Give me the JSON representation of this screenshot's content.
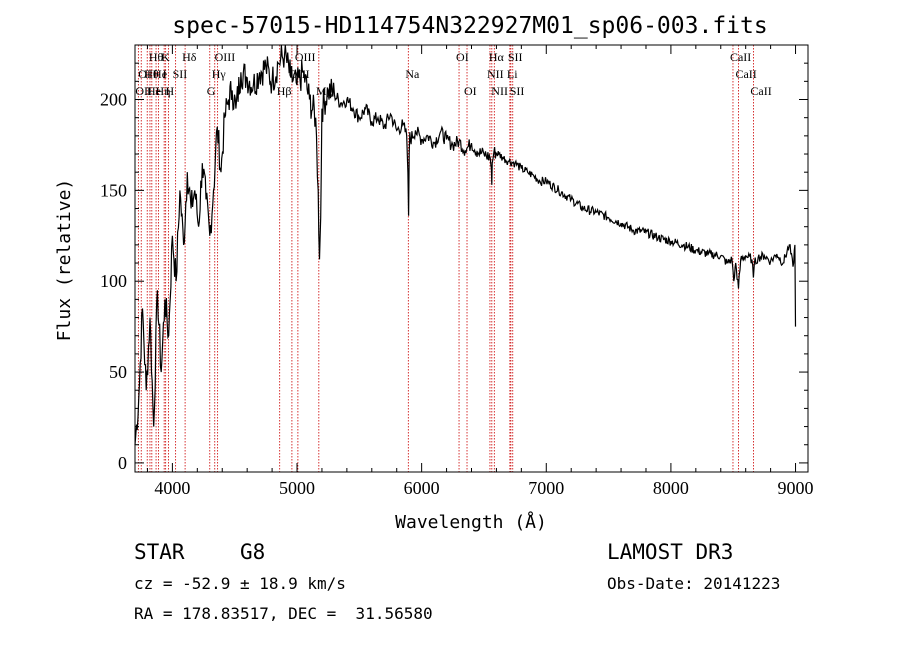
{
  "chart_data": {
    "type": "line",
    "title": "spec-57015-HD114754N322927M01_sp06-003.fits",
    "xlabel": "Wavelength (Å)",
    "ylabel": "Flux (relative)",
    "xlim": [
      3700,
      9100
    ],
    "ylim": [
      -5,
      230
    ],
    "xticks": [
      4000,
      5000,
      6000,
      7000,
      8000,
      9000
    ],
    "yticks": [
      0,
      50,
      100,
      150,
      200
    ],
    "x_tick_labels": [
      "4000",
      "5000",
      "6000",
      "7000",
      "8000",
      "9000"
    ],
    "y_tick_labels": [
      "0",
      "50",
      "100",
      "150",
      "200"
    ],
    "series": [
      {
        "name": "spectrum",
        "color": "#000000",
        "x": [
          3700,
          3730,
          3760,
          3790,
          3820,
          3850,
          3880,
          3910,
          3940,
          3970,
          4000,
          4030,
          4060,
          4090,
          4120,
          4150,
          4180,
          4210,
          4240,
          4270,
          4300,
          4330,
          4360,
          4390,
          4420,
          4450,
          4480,
          4510,
          4550,
          4600,
          4650,
          4700,
          4750,
          4800,
          4850,
          4900,
          4950,
          5000,
          5050,
          5100,
          5150,
          5170,
          5180,
          5190,
          5200,
          5250,
          5300,
          5350,
          5400,
          5450,
          5500,
          5550,
          5600,
          5650,
          5700,
          5750,
          5800,
          5850,
          5880,
          5890,
          5895,
          5900,
          5905,
          5910,
          5950,
          6000,
          6050,
          6100,
          6150,
          6200,
          6250,
          6300,
          6350,
          6400,
          6450,
          6500,
          6550,
          6560,
          6563,
          6566,
          6580,
          6620,
          6650,
          6700,
          6750,
          6800,
          6850,
          6900,
          6950,
          7000,
          7100,
          7200,
          7300,
          7400,
          7500,
          7600,
          7700,
          7800,
          7900,
          8000,
          8100,
          8200,
          8300,
          8400,
          8450,
          8490,
          8498,
          8505,
          8520,
          8542,
          8560,
          8600,
          8650,
          8662,
          8670,
          8700,
          8750,
          8800,
          8850,
          8900,
          8950,
          8980,
          8995,
          9000
        ],
        "values": [
          10,
          35,
          85,
          40,
          80,
          20,
          95,
          50,
          90,
          70,
          125,
          100,
          150,
          120,
          160,
          140,
          150,
          130,
          165,
          145,
          125,
          150,
          185,
          160,
          190,
          200,
          205,
          195,
          215,
          212,
          208,
          215,
          218,
          210,
          220,
          225,
          212,
          208,
          215,
          200,
          190,
          150,
          112,
          135,
          195,
          205,
          203,
          198,
          200,
          195,
          190,
          195,
          188,
          190,
          185,
          192,
          183,
          186,
          180,
          160,
          136,
          170,
          182,
          178,
          183,
          178,
          180,
          176,
          182,
          178,
          175,
          177,
          172,
          176,
          171,
          170,
          168,
          162,
          153,
          165,
          171,
          170,
          168,
          166,
          165,
          162,
          160,
          158,
          155,
          155,
          150,
          145,
          140,
          138,
          135,
          132,
          128,
          127,
          124,
          122,
          120,
          117,
          115,
          114,
          110,
          112,
          106,
          100,
          110,
          96,
          112,
          114,
          112,
          102,
          110,
          113,
          114,
          111,
          115,
          110,
          120,
          108,
          120,
          75
        ]
      }
    ],
    "reference_lines": [
      {
        "wl": 3727,
        "row": 2,
        "label": "OII"
      },
      {
        "wl": 3750,
        "row": 1,
        "label": "OI"
      },
      {
        "wl": 3798,
        "row": 1,
        "label": "Hθ"
      },
      {
        "wl": 3820,
        "row": 2,
        "label": "He"
      },
      {
        "wl": 3835,
        "row": 0,
        "label": "Hθ"
      },
      {
        "wl": 3869,
        "row": 1,
        "label": "He"
      },
      {
        "wl": 3889,
        "row": 2,
        "label": "Hη"
      },
      {
        "wl": 3934,
        "row": 0,
        "label": "K"
      },
      {
        "wl": 3946,
        "row": 1,
        "label": "I"
      },
      {
        "wl": 3969,
        "row": 2,
        "label": "H"
      },
      {
        "wl": 4026,
        "row": 1,
        "label": "SII"
      },
      {
        "wl": 4102,
        "row": 0,
        "label": "Hδ"
      },
      {
        "wl": 4300,
        "row": 2,
        "label": "G"
      },
      {
        "wl": 4340,
        "row": 1,
        "label": "Hγ"
      },
      {
        "wl": 4363,
        "row": 0,
        "label": "OIII"
      },
      {
        "wl": 4861,
        "row": 2,
        "label": "Hβ"
      },
      {
        "wl": 4959,
        "row": 1,
        "label": "OIII"
      },
      {
        "wl": 5007,
        "row": 0,
        "label": "OIII"
      },
      {
        "wl": 5175,
        "row": 2,
        "label": "Mg"
      },
      {
        "wl": 5893,
        "row": 1,
        "label": "Na"
      },
      {
        "wl": 6300,
        "row": 0,
        "label": "OI"
      },
      {
        "wl": 6364,
        "row": 2,
        "label": "OI"
      },
      {
        "wl": 6548,
        "row": 1,
        "label": "NII"
      },
      {
        "wl": 6563,
        "row": 0,
        "label": "Hα"
      },
      {
        "wl": 6583,
        "row": 2,
        "label": "NII"
      },
      {
        "wl": 6708,
        "row": 1,
        "label": "Li"
      },
      {
        "wl": 6716,
        "row": 0,
        "label": "SII"
      },
      {
        "wl": 6731,
        "row": 2,
        "label": "SII"
      },
      {
        "wl": 8498,
        "row": 0,
        "label": "CaII"
      },
      {
        "wl": 8542,
        "row": 1,
        "label": "CaII"
      },
      {
        "wl": 8662,
        "row": 2,
        "label": "CaII"
      }
    ]
  },
  "info": {
    "object_type": "STAR",
    "subclass": "G8",
    "survey": "LAMOST DR3",
    "cz": "cz = -52.9 ± 18.9 km/s",
    "obs_date": "Obs-Date: 20141223",
    "coords": "RA = 178.83517, DEC =  31.56580"
  },
  "colors": {
    "axis": "#000000",
    "spectrum": "#000000",
    "reference_line": "#cc0000"
  }
}
